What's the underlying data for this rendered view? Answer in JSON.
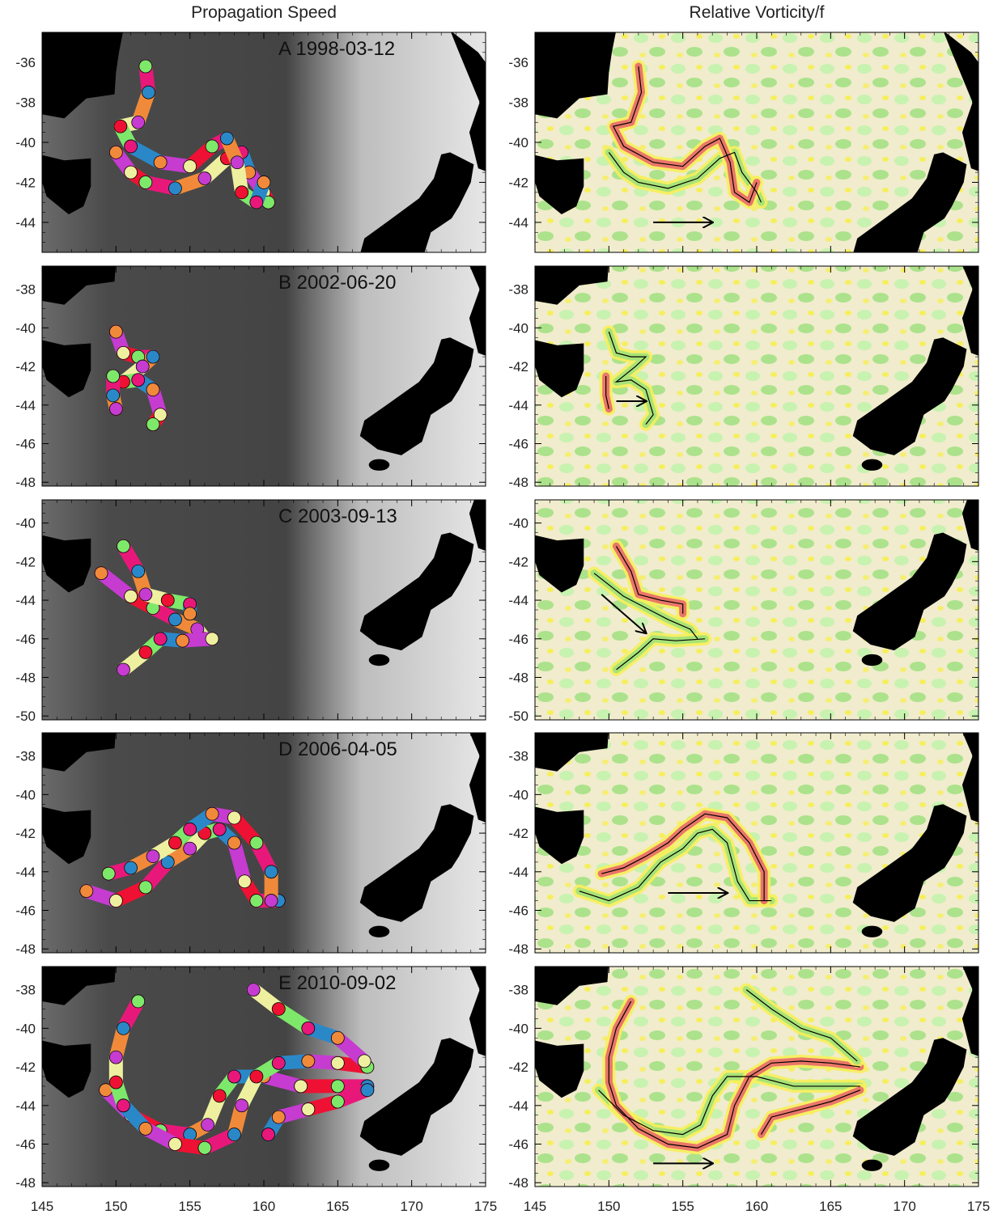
{
  "column_titles": {
    "left": "Propagation Speed",
    "right": "Relative Vorticity/f"
  },
  "colors": {
    "land": "#000000",
    "ocean_dark": "#4a4a4a",
    "ocean_light": "#e8e8e8",
    "vort_background": "#f0eccd",
    "vort_green": "#9be07a",
    "vort_light_green": "#c8f2b0",
    "vort_yellow": "#f7ef5a",
    "vort_blue": "#2e6fe0",
    "vort_red": "#e8606a",
    "track": "#000000",
    "speed_magenta": "#c63bd0",
    "speed_red": "#ee1133",
    "speed_pink": "#e8187a",
    "speed_orange": "#f08a3a",
    "speed_lightyellow": "#eef0a0",
    "speed_green": "#7ee86a",
    "speed_blue": "#2a88c8",
    "speed_purple": "#8a1a8a"
  },
  "chart_data": {
    "type": "scatter",
    "x_ticks": [
      "145",
      "150",
      "155",
      "160",
      "165",
      "170",
      "175"
    ],
    "xlim": [
      145,
      175
    ],
    "panels": [
      {
        "label": "A 1998-03-12",
        "ylim": [
          -45.5,
          -34.5
        ],
        "y_ticks": [
          "-36",
          "-38",
          "-40",
          "-42",
          "-44"
        ],
        "arrow": {
          "from": [
            153,
            -44
          ],
          "to": [
            157,
            -44
          ]
        },
        "tracks": [
          {
            "name": "",
            "points": [
              [
                150,
                -40.5
              ],
              [
                151,
                -41.5
              ],
              [
                152,
                -42
              ],
              [
                154,
                -42.3
              ],
              [
                156,
                -41.8
              ],
              [
                157.5,
                -40.8
              ],
              [
                158.5,
                -40.5
              ],
              [
                159,
                -41.5
              ],
              [
                160,
                -42.5
              ],
              [
                160.3,
                -43
              ]
            ]
          },
          {
            "name": "",
            "points": [
              [
                152,
                -36.2
              ],
              [
                152.2,
                -37.5
              ],
              [
                151.5,
                -39
              ],
              [
                150.3,
                -39.2
              ],
              [
                151,
                -40.2
              ],
              [
                153,
                -41
              ],
              [
                155,
                -41.2
              ],
              [
                156.5,
                -40.2
              ],
              [
                157.5,
                -39.8
              ],
              [
                158.2,
                -41
              ],
              [
                158.5,
                -42.5
              ],
              [
                159.5,
                -43
              ],
              [
                160,
                -42
              ]
            ]
          }
        ]
      },
      {
        "label": "B 2002-06-20",
        "ylim": [
          -48.2,
          -36.8
        ],
        "y_ticks": [
          "-38",
          "-40",
          "-42",
          "-44",
          "-46",
          "-48"
        ],
        "arrow": {
          "from": [
            150.5,
            -43.8
          ],
          "to": [
            152.5,
            -43.8
          ]
        },
        "tracks": [
          {
            "name": "",
            "points": [
              [
                150,
                -40.2
              ],
              [
                150.5,
                -41.3
              ],
              [
                151.5,
                -41.5
              ],
              [
                152.5,
                -41.5
              ],
              [
                151.8,
                -42
              ],
              [
                150.5,
                -42.8
              ],
              [
                151.5,
                -42.7
              ],
              [
                152.5,
                -43.2
              ],
              [
                153,
                -44.5
              ],
              [
                152.5,
                -45
              ]
            ]
          },
          {
            "name": "",
            "points": [
              [
                149.8,
                -42.5
              ],
              [
                149.8,
                -43.5
              ],
              [
                150,
                -44.2
              ]
            ]
          }
        ]
      },
      {
        "label": "C 2003-09-13",
        "ylim": [
          -50.2,
          -38.8
        ],
        "y_ticks": [
          "-40",
          "-42",
          "-44",
          "-46",
          "-48",
          "-50"
        ],
        "arrow": {
          "from": [
            149.5,
            -43.7
          ],
          "to": [
            152.5,
            -45.7
          ]
        },
        "tracks": [
          {
            "name": "",
            "points": [
              [
                149,
                -42.6
              ],
              [
                151,
                -43.8
              ],
              [
                152.5,
                -44.4
              ],
              [
                154,
                -45
              ],
              [
                155.5,
                -45.5
              ],
              [
                156,
                -46
              ]
            ]
          },
          {
            "name": "",
            "points": [
              [
                150.5,
                -41.2
              ],
              [
                151.5,
                -42.5
              ],
              [
                152,
                -43.7
              ],
              [
                153.5,
                -44
              ],
              [
                155,
                -44.2
              ],
              [
                155,
                -44.7
              ]
            ]
          },
          {
            "name": "",
            "points": [
              [
                150.5,
                -47.6
              ],
              [
                152,
                -46.7
              ],
              [
                153,
                -46
              ],
              [
                154.5,
                -46.1
              ],
              [
                156.5,
                -46
              ]
            ]
          }
        ]
      },
      {
        "label": "D 2006-04-05",
        "ylim": [
          -48.2,
          -36.8
        ],
        "y_ticks": [
          "-38",
          "-40",
          "-42",
          "-44",
          "-46",
          "-48"
        ],
        "arrow": {
          "from": [
            154,
            -45.1
          ],
          "to": [
            158,
            -45.1
          ]
        },
        "tracks": [
          {
            "name": "",
            "points": [
              [
                148,
                -45
              ],
              [
                150,
                -45.5
              ],
              [
                152,
                -44.8
              ],
              [
                153.5,
                -43.5
              ],
              [
                155,
                -42.8
              ],
              [
                156,
                -42
              ],
              [
                157,
                -41.8
              ],
              [
                158,
                -42.5
              ],
              [
                158.7,
                -44.5
              ],
              [
                159.5,
                -45.5
              ],
              [
                161,
                -45.5
              ]
            ]
          },
          {
            "name": "",
            "points": [
              [
                149.5,
                -44.1
              ],
              [
                151,
                -43.8
              ],
              [
                152.5,
                -43.2
              ],
              [
                154,
                -42.5
              ],
              [
                155,
                -41.8
              ],
              [
                156.5,
                -41
              ],
              [
                158,
                -41.2
              ],
              [
                159.5,
                -42.5
              ],
              [
                160.5,
                -44
              ],
              [
                160.5,
                -45.5
              ]
            ]
          }
        ]
      },
      {
        "label": "E 2010-09-02",
        "ylim": [
          -48.2,
          -36.8
        ],
        "y_ticks": [
          "-38",
          "-40",
          "-42",
          "-44",
          "-46",
          "-48"
        ],
        "arrow": {
          "from": [
            153,
            -47
          ],
          "to": [
            157,
            -47
          ]
        },
        "tracks": [
          {
            "name": "",
            "points": [
              [
                149.3,
                -43.2
              ],
              [
                151,
                -44.5
              ],
              [
                153,
                -45.3
              ],
              [
                155,
                -45.5
              ],
              [
                156.2,
                -45
              ],
              [
                157,
                -43.5
              ],
              [
                158,
                -42.5
              ],
              [
                160,
                -42.5
              ],
              [
                162.5,
                -43
              ],
              [
                165,
                -43
              ],
              [
                167,
                -43
              ]
            ]
          },
          {
            "name": "",
            "points": [
              [
                151.5,
                -38.6
              ],
              [
                150.5,
                -40
              ],
              [
                150,
                -41.5
              ],
              [
                150,
                -42.8
              ],
              [
                150.5,
                -44
              ],
              [
                152,
                -45.2
              ],
              [
                154,
                -46
              ],
              [
                156,
                -46.2
              ],
              [
                158,
                -45.5
              ],
              [
                158.5,
                -44
              ],
              [
                159.5,
                -42.5
              ],
              [
                161,
                -41.8
              ],
              [
                163,
                -41.7
              ],
              [
                165,
                -41.8
              ],
              [
                167,
                -42
              ]
            ]
          },
          {
            "name": "",
            "points": [
              [
                159.3,
                -38
              ],
              [
                161,
                -39
              ],
              [
                163,
                -40
              ],
              [
                165,
                -40.5
              ],
              [
                166.8,
                -41.7
              ]
            ]
          },
          {
            "name": "",
            "points": [
              [
                160.3,
                -45.5
              ],
              [
                161,
                -44.6
              ],
              [
                163,
                -44.2
              ],
              [
                165,
                -43.8
              ],
              [
                167,
                -43.2
              ]
            ]
          }
        ]
      }
    ]
  }
}
